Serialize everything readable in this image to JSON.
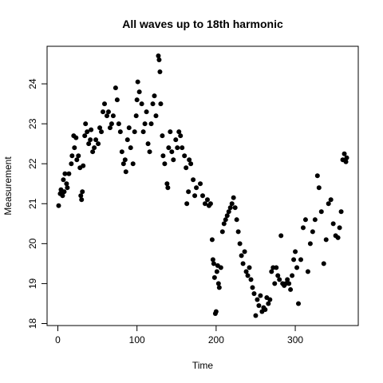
{
  "chart_data": {
    "type": "scatter",
    "title": "All waves up to 18th harmonic",
    "x_label": "Time",
    "y_label": "Measurement",
    "color": "#000000",
    "x": [
      1,
      3,
      4,
      6,
      7,
      8,
      9,
      11,
      12,
      14,
      17,
      18,
      20,
      21,
      23,
      24,
      26,
      28,
      29,
      30,
      31,
      32,
      34,
      35,
      37,
      39,
      41,
      42,
      44,
      46,
      48,
      51,
      53,
      55,
      57,
      59,
      62,
      64,
      66,
      68,
      70,
      73,
      75,
      77,
      79,
      81,
      83,
      85,
      86,
      88,
      90,
      92,
      95,
      97,
      99,
      100,
      101,
      103,
      106,
      108,
      110,
      112,
      114,
      116,
      118,
      120,
      122,
      124,
      127,
      128,
      129,
      130,
      132,
      133,
      135,
      138,
      139,
      140,
      142,
      144,
      146,
      149,
      151,
      153,
      155,
      157,
      160,
      162,
      163,
      165,
      166,
      168,
      171,
      173,
      175,
      180,
      183,
      186,
      189,
      191,
      193,
      195,
      196,
      197,
      198,
      199,
      200,
      201,
      202,
      203,
      204,
      206,
      208,
      210,
      212,
      214,
      216,
      218,
      220,
      222,
      224,
      226,
      228,
      230,
      232,
      234,
      236,
      238,
      240,
      242,
      244,
      246,
      248,
      250,
      252,
      254,
      256,
      258,
      260,
      262,
      264,
      266,
      268,
      270,
      272,
      274,
      276,
      278,
      280,
      282,
      284,
      286,
      288,
      290,
      292,
      294,
      296,
      298,
      300,
      302,
      304,
      307,
      310,
      313,
      316,
      319,
      322,
      325,
      328,
      330,
      333,
      336,
      339,
      342,
      345,
      348,
      351,
      354,
      356,
      358,
      360,
      362,
      364,
      365
    ],
    "y": [
      20.95,
      21.25,
      21.35,
      21.2,
      21.6,
      21.3,
      21.75,
      21.5,
      21.4,
      21.75,
      22.0,
      22.2,
      22.7,
      22.4,
      22.65,
      22.1,
      22.2,
      21.9,
      21.2,
      21.1,
      21.3,
      21.95,
      22.7,
      23.0,
      22.8,
      22.5,
      22.6,
      22.85,
      22.3,
      22.4,
      22.6,
      22.5,
      22.9,
      22.8,
      23.3,
      23.5,
      23.2,
      23.3,
      22.9,
      23.0,
      23.2,
      23.9,
      23.6,
      23.0,
      22.8,
      22.3,
      22.0,
      22.1,
      21.8,
      22.6,
      22.9,
      22.4,
      22.0,
      22.8,
      23.2,
      23.6,
      24.05,
      23.8,
      23.5,
      22.8,
      23.0,
      23.3,
      22.5,
      22.3,
      23.0,
      23.5,
      23.7,
      23.2,
      24.7,
      24.6,
      24.3,
      23.5,
      22.7,
      22.2,
      22.0,
      21.5,
      21.4,
      22.4,
      22.8,
      22.3,
      22.1,
      22.6,
      22.4,
      22.8,
      22.7,
      22.4,
      22.2,
      21.9,
      21.0,
      21.3,
      22.1,
      22.0,
      21.6,
      21.2,
      21.4,
      21.5,
      21.2,
      21.0,
      21.1,
      20.95,
      21.0,
      20.1,
      19.6,
      19.5,
      19.15,
      18.25,
      18.3,
      19.3,
      19.45,
      19.0,
      18.9,
      19.4,
      20.3,
      20.5,
      20.6,
      20.7,
      20.8,
      20.9,
      21.0,
      21.15,
      20.9,
      20.6,
      20.3,
      20.0,
      19.7,
      19.5,
      19.8,
      19.3,
      19.2,
      19.4,
      19.1,
      18.9,
      18.75,
      18.2,
      18.6,
      18.45,
      18.7,
      18.3,
      18.4,
      18.35,
      18.65,
      18.5,
      18.6,
      19.3,
      19.4,
      19.0,
      19.4,
      19.2,
      19.1,
      20.2,
      19.0,
      18.95,
      19.0,
      19.1,
      19.0,
      18.85,
      19.2,
      19.6,
      19.8,
      19.4,
      18.5,
      19.6,
      20.4,
      20.6,
      19.3,
      20.0,
      20.3,
      20.6,
      21.7,
      21.4,
      20.8,
      19.5,
      20.1,
      21.0,
      21.1,
      20.5,
      20.2,
      20.15,
      20.4,
      20.8,
      22.1,
      22.25,
      22.05,
      22.15
    ],
    "xlim": [
      -13.6,
      379.6
    ],
    "ylim": [
      17.95,
      24.94
    ],
    "xticks": [
      0,
      100,
      200,
      300
    ],
    "yticks": [
      18,
      19,
      20,
      21,
      22,
      23,
      24
    ]
  }
}
